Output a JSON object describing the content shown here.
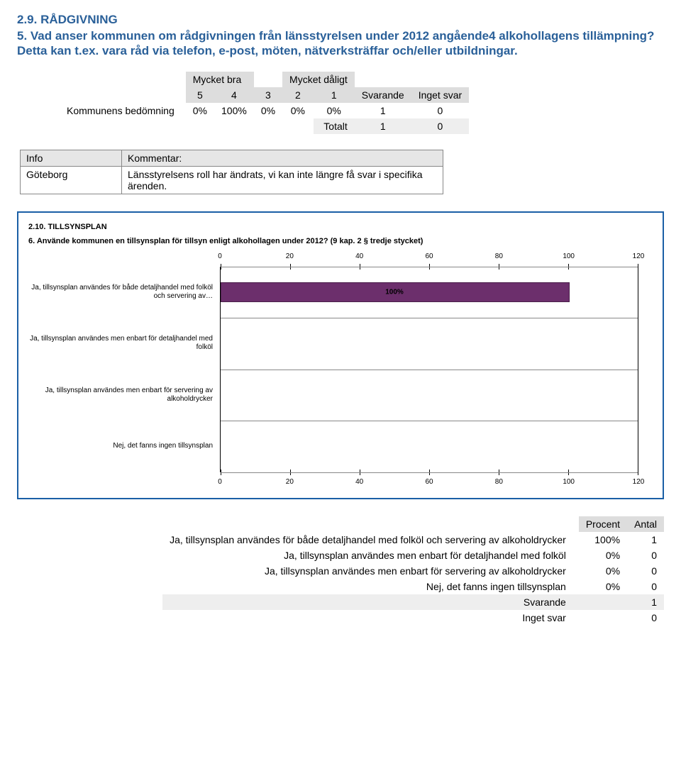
{
  "section_29": {
    "title": "2.9. RÅDGIVNING",
    "question": "5. Vad anser kommunen om rådgivningen från länsstyrelsen under 2012 angående4 alkohollagens tillämpning? Detta kan t.ex. vara råd via telefon, e-post, möten, nätverksträffar och/eller utbildningar.",
    "likert": {
      "left_header": "Mycket bra",
      "right_header": "Mycket dåligt",
      "scale": [
        "5",
        "4",
        "3",
        "2",
        "1"
      ],
      "col_svarande": "Svarande",
      "col_inget": "Inget svar",
      "row_label": "Kommunens bedömning",
      "row_values": [
        "0%",
        "100%",
        "0%",
        "0%",
        "0%",
        "1",
        "0"
      ],
      "total_label": "Totalt",
      "total_values": [
        "1",
        "0"
      ]
    },
    "comment_table": {
      "h1": "Info",
      "h2": "Kommentar:",
      "c1": "Göteborg",
      "c2": "Länsstyrelsens roll har ändrats, vi kan inte längre få svar i specifika ärenden."
    }
  },
  "section_210": {
    "box_title": "2.10. TILLSYNSPLAN",
    "box_question": "6. Använde kommunen en tillsynsplan för  tillsyn enligt alkohollagen under 2012? (9 kap. 2 § tredje stycket)",
    "chart_type": "horizontal-bar",
    "xlim": [
      0,
      120
    ],
    "xtick_step": 20,
    "xticks": [
      "0",
      "20",
      "40",
      "60",
      "80",
      "100",
      "120"
    ],
    "categories": [
      "Ja, tillsynsplan användes för både detaljhandel med folköl och servering av…",
      "Ja, tillsynsplan användes men enbart för detaljhandel med folköl",
      "Ja, tillsynsplan användes men enbart för servering av alkoholdrycker",
      "Nej, det fanns ingen tillsynsplan"
    ],
    "values": [
      100,
      0,
      0,
      0
    ],
    "value_labels": [
      "100%",
      "",
      "",
      ""
    ],
    "bar_color": "#6c2f6c",
    "bar_border": "#4a1f4a",
    "grid_color": "#888888",
    "background_color": "#ffffff"
  },
  "results": {
    "col_procent": "Procent",
    "col_antal": "Antal",
    "rows": [
      {
        "label": "Ja, tillsynsplan användes för både detaljhandel med folköl och servering av alkoholdrycker",
        "procent": "100%",
        "antal": "1"
      },
      {
        "label": "Ja, tillsynsplan användes men enbart för detaljhandel med folköl",
        "procent": "0%",
        "antal": "0"
      },
      {
        "label": "Ja, tillsynsplan användes men enbart för servering av alkoholdrycker",
        "procent": "0%",
        "antal": "0"
      },
      {
        "label": "Nej, det fanns ingen tillsynsplan",
        "procent": "0%",
        "antal": "0"
      }
    ],
    "svarande_label": "Svarande",
    "svarande_val": "1",
    "inget_label": "Inget svar",
    "inget_val": "0"
  }
}
